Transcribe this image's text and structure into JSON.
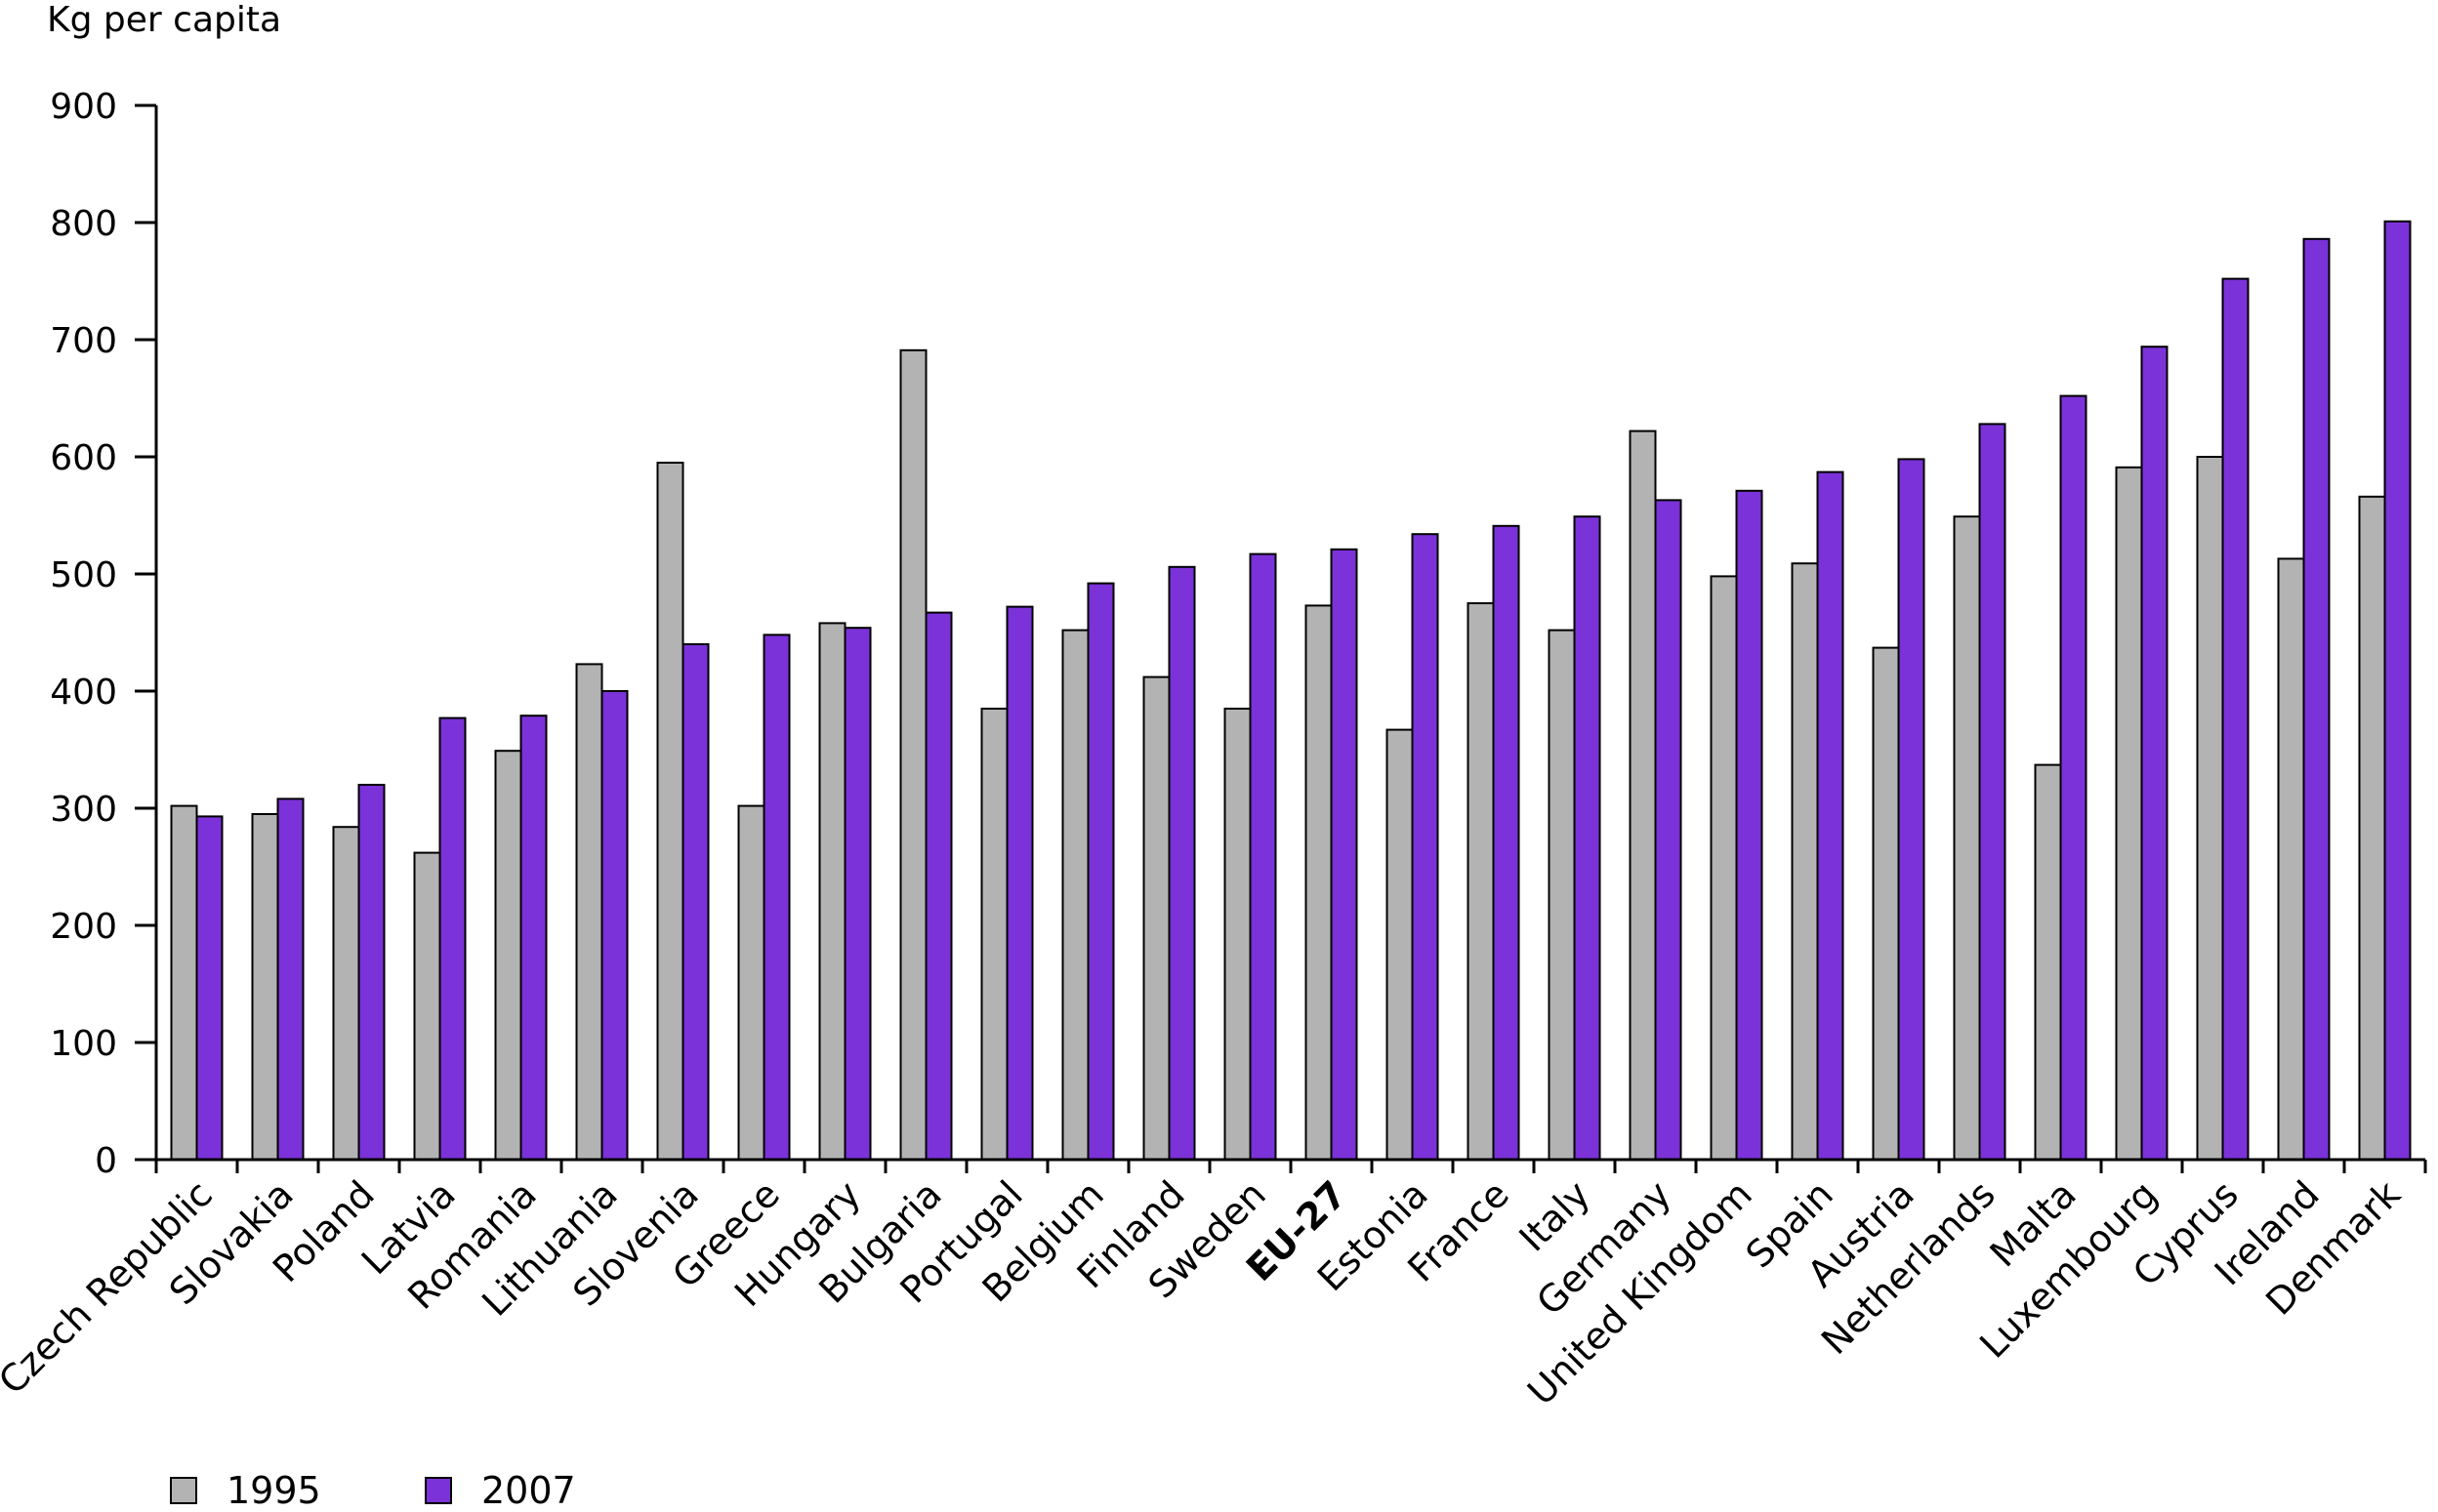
{
  "chart_data": {
    "type": "bar",
    "ylabel": "Kg per capita",
    "xlabel": "",
    "ylim": [
      0,
      900
    ],
    "yticks": [
      0,
      100,
      200,
      300,
      400,
      500,
      600,
      700,
      800,
      900
    ],
    "highlight_category": "EU-27",
    "categories": [
      "Czech Republic",
      "Slovakia",
      "Poland",
      "Latvia",
      "Romania",
      "Lithuania",
      "Slovenia",
      "Greece",
      "Hungary",
      "Bulgaria",
      "Portugal",
      "Belgium",
      "Finland",
      "Sweden",
      "EU-27",
      "Estonia",
      "France",
      "Italy",
      "Germany",
      "United Kingdom",
      "Spain",
      "Austria",
      "Netherlands",
      "Malta",
      "Luxembourg",
      "Cyprus",
      "Ireland",
      "Denmark"
    ],
    "series": [
      {
        "name": "1995",
        "color": "#b3b3b3",
        "values": [
          302,
          295,
          284,
          262,
          349,
          423,
          595,
          302,
          458,
          691,
          385,
          452,
          412,
          385,
          473,
          367,
          475,
          452,
          622,
          498,
          509,
          437,
          549,
          337,
          591,
          600,
          513,
          566
        ]
      },
      {
        "name": "2007",
        "color": "#7b32d8",
        "values": [
          293,
          308,
          320,
          377,
          379,
          400,
          440,
          448,
          454,
          467,
          472,
          492,
          506,
          517,
          521,
          534,
          541,
          549,
          563,
          571,
          587,
          598,
          628,
          652,
          694,
          752,
          786,
          801
        ]
      }
    ],
    "legend": [
      "1995",
      "2007"
    ],
    "legend_position": "bottom-left"
  }
}
